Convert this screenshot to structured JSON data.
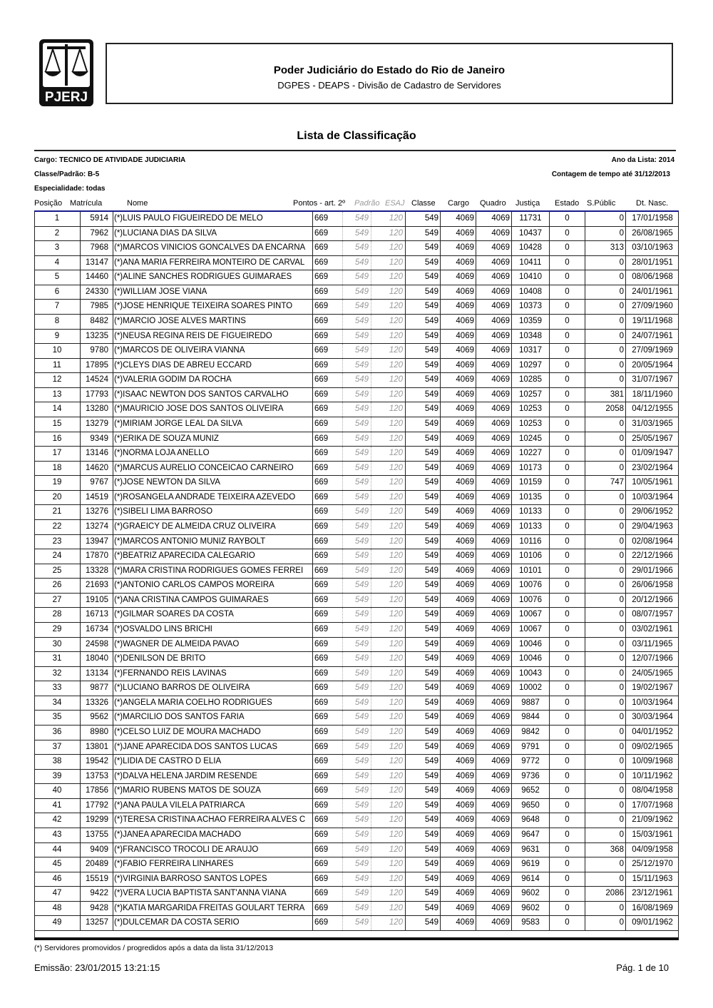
{
  "header": {
    "logo_text": "PJERJ",
    "org": "Poder Judiciário do Estado do Rio de Janeiro",
    "dept": "DGPES - DEAPS - Divisão de Cadastro de Servidores"
  },
  "title": "Lista de Classificação",
  "meta": {
    "cargo": "Cargo: TECNICO DE ATIVIDADE JUDICIARIA",
    "ano": "Ano da Lista: 2014",
    "classe": "Classe/Padrão: B-5",
    "contagem": "Contagem de tempo até 31/12/2013",
    "especialidade": "Especialidade: todas"
  },
  "columns": {
    "posicao": "Posição",
    "matricula": "Matrícula",
    "nome": "Nome",
    "pontos": "Pontos - art. 2º",
    "padrao": "Padrão",
    "esaj": "ESAJ",
    "classe": "Classe",
    "cargo": "Cargo",
    "quadro": "Quadro",
    "justica": "Justiça",
    "estado": "Estado",
    "spublic": "S.Públic",
    "dtnasc": "Dt. Nasc."
  },
  "rows": [
    [
      "1",
      "5914",
      "(*)LUIS PAULO FIGUEIREDO DE MELO",
      "669",
      "549",
      "120",
      "549",
      "4069",
      "4069",
      "11731",
      "0",
      "0",
      "17/01/1958"
    ],
    [
      "2",
      "7962",
      "(*)LUCIANA DIAS DA SILVA",
      "669",
      "549",
      "120",
      "549",
      "4069",
      "4069",
      "10437",
      "0",
      "0",
      "26/08/1965"
    ],
    [
      "3",
      "7968",
      "(*)MARCOS VINICIOS GONCALVES DA ENCARNA",
      "669",
      "549",
      "120",
      "549",
      "4069",
      "4069",
      "10428",
      "0",
      "313",
      "03/10/1963"
    ],
    [
      "4",
      "13147",
      "(*)ANA MARIA FERREIRA MONTEIRO DE CARVAL",
      "669",
      "549",
      "120",
      "549",
      "4069",
      "4069",
      "10411",
      "0",
      "0",
      "28/01/1951"
    ],
    [
      "5",
      "14460",
      "(*)ALINE SANCHES RODRIGUES GUIMARAES",
      "669",
      "549",
      "120",
      "549",
      "4069",
      "4069",
      "10410",
      "0",
      "0",
      "08/06/1968"
    ],
    [
      "6",
      "24330",
      "(*)WILLIAM JOSE VIANA",
      "669",
      "549",
      "120",
      "549",
      "4069",
      "4069",
      "10408",
      "0",
      "0",
      "24/01/1961"
    ],
    [
      "7",
      "7985",
      "(*)JOSE HENRIQUE TEIXEIRA SOARES PINTO",
      "669",
      "549",
      "120",
      "549",
      "4069",
      "4069",
      "10373",
      "0",
      "0",
      "27/09/1960"
    ],
    [
      "8",
      "8482",
      "(*)MARCIO JOSE ALVES MARTINS",
      "669",
      "549",
      "120",
      "549",
      "4069",
      "4069",
      "10359",
      "0",
      "0",
      "19/11/1968"
    ],
    [
      "9",
      "13235",
      "(*)NEUSA REGINA REIS DE FIGUEIREDO",
      "669",
      "549",
      "120",
      "549",
      "4069",
      "4069",
      "10348",
      "0",
      "0",
      "24/07/1961"
    ],
    [
      "10",
      "9780",
      "(*)MARCOS DE OLIVEIRA VIANNA",
      "669",
      "549",
      "120",
      "549",
      "4069",
      "4069",
      "10317",
      "0",
      "0",
      "27/09/1969"
    ],
    [
      "11",
      "17895",
      "(*)CLEYS DIAS DE ABREU ECCARD",
      "669",
      "549",
      "120",
      "549",
      "4069",
      "4069",
      "10297",
      "0",
      "0",
      "20/05/1964"
    ],
    [
      "12",
      "14524",
      "(*)VALERIA GODIM DA ROCHA",
      "669",
      "549",
      "120",
      "549",
      "4069",
      "4069",
      "10285",
      "0",
      "0",
      "31/07/1967"
    ],
    [
      "13",
      "17793",
      "(*)ISAAC NEWTON DOS SANTOS CARVALHO",
      "669",
      "549",
      "120",
      "549",
      "4069",
      "4069",
      "10257",
      "0",
      "381",
      "18/11/1960"
    ],
    [
      "14",
      "13280",
      "(*)MAURICIO JOSE DOS SANTOS OLIVEIRA",
      "669",
      "549",
      "120",
      "549",
      "4069",
      "4069",
      "10253",
      "0",
      "2058",
      "04/12/1955"
    ],
    [
      "15",
      "13279",
      "(*)MIRIAM JORGE LEAL DA SILVA",
      "669",
      "549",
      "120",
      "549",
      "4069",
      "4069",
      "10253",
      "0",
      "0",
      "31/03/1965"
    ],
    [
      "16",
      "9349",
      "(*)ERIKA DE SOUZA MUNIZ",
      "669",
      "549",
      "120",
      "549",
      "4069",
      "4069",
      "10245",
      "0",
      "0",
      "25/05/1967"
    ],
    [
      "17",
      "13146",
      "(*)NORMA LOJA ANELLO",
      "669",
      "549",
      "120",
      "549",
      "4069",
      "4069",
      "10227",
      "0",
      "0",
      "01/09/1947"
    ],
    [
      "18",
      "14620",
      "(*)MARCUS AURELIO CONCEICAO CARNEIRO",
      "669",
      "549",
      "120",
      "549",
      "4069",
      "4069",
      "10173",
      "0",
      "0",
      "23/02/1964"
    ],
    [
      "19",
      "9767",
      "(*)JOSE NEWTON DA SILVA",
      "669",
      "549",
      "120",
      "549",
      "4069",
      "4069",
      "10159",
      "0",
      "747",
      "10/05/1961"
    ],
    [
      "20",
      "14519",
      "(*)ROSANGELA ANDRADE TEIXEIRA AZEVEDO",
      "669",
      "549",
      "120",
      "549",
      "4069",
      "4069",
      "10135",
      "0",
      "0",
      "10/03/1964"
    ],
    [
      "21",
      "13276",
      "(*)SIBELI LIMA BARROSO",
      "669",
      "549",
      "120",
      "549",
      "4069",
      "4069",
      "10133",
      "0",
      "0",
      "29/06/1952"
    ],
    [
      "22",
      "13274",
      "(*)GRAEICY DE ALMEIDA CRUZ OLIVEIRA",
      "669",
      "549",
      "120",
      "549",
      "4069",
      "4069",
      "10133",
      "0",
      "0",
      "29/04/1963"
    ],
    [
      "23",
      "13947",
      "(*)MARCOS ANTONIO MUNIZ RAYBOLT",
      "669",
      "549",
      "120",
      "549",
      "4069",
      "4069",
      "10116",
      "0",
      "0",
      "02/08/1964"
    ],
    [
      "24",
      "17870",
      "(*)BEATRIZ APARECIDA CALEGARIO",
      "669",
      "549",
      "120",
      "549",
      "4069",
      "4069",
      "10106",
      "0",
      "0",
      "22/12/1966"
    ],
    [
      "25",
      "13328",
      "(*)MARA CRISTINA RODRIGUES GOMES FERREI",
      "669",
      "549",
      "120",
      "549",
      "4069",
      "4069",
      "10101",
      "0",
      "0",
      "29/01/1966"
    ],
    [
      "26",
      "21693",
      "(*)ANTONIO CARLOS CAMPOS MOREIRA",
      "669",
      "549",
      "120",
      "549",
      "4069",
      "4069",
      "10076",
      "0",
      "0",
      "26/06/1958"
    ],
    [
      "27",
      "19105",
      "(*)ANA CRISTINA CAMPOS GUIMARAES",
      "669",
      "549",
      "120",
      "549",
      "4069",
      "4069",
      "10076",
      "0",
      "0",
      "20/12/1966"
    ],
    [
      "28",
      "16713",
      "(*)GILMAR SOARES DA COSTA",
      "669",
      "549",
      "120",
      "549",
      "4069",
      "4069",
      "10067",
      "0",
      "0",
      "08/07/1957"
    ],
    [
      "29",
      "16734",
      "(*)OSVALDO LINS BRICHI",
      "669",
      "549",
      "120",
      "549",
      "4069",
      "4069",
      "10067",
      "0",
      "0",
      "03/02/1961"
    ],
    [
      "30",
      "24598",
      "(*)WAGNER DE ALMEIDA PAVAO",
      "669",
      "549",
      "120",
      "549",
      "4069",
      "4069",
      "10046",
      "0",
      "0",
      "03/11/1965"
    ],
    [
      "31",
      "18040",
      "(*)DENILSON DE BRITO",
      "669",
      "549",
      "120",
      "549",
      "4069",
      "4069",
      "10046",
      "0",
      "0",
      "12/07/1966"
    ],
    [
      "32",
      "13134",
      "(*)FERNANDO REIS LAVINAS",
      "669",
      "549",
      "120",
      "549",
      "4069",
      "4069",
      "10043",
      "0",
      "0",
      "24/05/1965"
    ],
    [
      "33",
      "9877",
      "(*)LUCIANO BARROS DE OLIVEIRA",
      "669",
      "549",
      "120",
      "549",
      "4069",
      "4069",
      "10002",
      "0",
      "0",
      "19/02/1967"
    ],
    [
      "34",
      "13326",
      "(*)ANGELA MARIA COELHO RODRIGUES",
      "669",
      "549",
      "120",
      "549",
      "4069",
      "4069",
      "9887",
      "0",
      "0",
      "10/03/1964"
    ],
    [
      "35",
      "9562",
      "(*)MARCILIO DOS SANTOS FARIA",
      "669",
      "549",
      "120",
      "549",
      "4069",
      "4069",
      "9844",
      "0",
      "0",
      "30/03/1964"
    ],
    [
      "36",
      "8980",
      "(*)CELSO LUIZ DE MOURA MACHADO",
      "669",
      "549",
      "120",
      "549",
      "4069",
      "4069",
      "9842",
      "0",
      "0",
      "04/01/1952"
    ],
    [
      "37",
      "13801",
      "(*)JANE APARECIDA DOS SANTOS LUCAS",
      "669",
      "549",
      "120",
      "549",
      "4069",
      "4069",
      "9791",
      "0",
      "0",
      "09/02/1965"
    ],
    [
      "38",
      "19542",
      "(*)LIDIA DE CASTRO D ELIA",
      "669",
      "549",
      "120",
      "549",
      "4069",
      "4069",
      "9772",
      "0",
      "0",
      "10/09/1968"
    ],
    [
      "39",
      "13753",
      "(*)DALVA HELENA JARDIM RESENDE",
      "669",
      "549",
      "120",
      "549",
      "4069",
      "4069",
      "9736",
      "0",
      "0",
      "10/11/1962"
    ],
    [
      "40",
      "17856",
      "(*)MARIO RUBENS MATOS DE SOUZA",
      "669",
      "549",
      "120",
      "549",
      "4069",
      "4069",
      "9652",
      "0",
      "0",
      "08/04/1958"
    ],
    [
      "41",
      "17792",
      "(*)ANA PAULA VILELA PATRIARCA",
      "669",
      "549",
      "120",
      "549",
      "4069",
      "4069",
      "9650",
      "0",
      "0",
      "17/07/1968"
    ],
    [
      "42",
      "19299",
      "(*)TERESA CRISTINA ACHAO FERREIRA ALVES C",
      "669",
      "549",
      "120",
      "549",
      "4069",
      "4069",
      "9648",
      "0",
      "0",
      "21/09/1962"
    ],
    [
      "43",
      "13755",
      "(*)JANEA APARECIDA MACHADO",
      "669",
      "549",
      "120",
      "549",
      "4069",
      "4069",
      "9647",
      "0",
      "0",
      "15/03/1961"
    ],
    [
      "44",
      "9409",
      "(*)FRANCISCO TROCOLI DE ARAUJO",
      "669",
      "549",
      "120",
      "549",
      "4069",
      "4069",
      "9631",
      "0",
      "368",
      "04/09/1958"
    ],
    [
      "45",
      "20489",
      "(*)FABIO FERREIRA LINHARES",
      "669",
      "549",
      "120",
      "549",
      "4069",
      "4069",
      "9619",
      "0",
      "0",
      "25/12/1970"
    ],
    [
      "46",
      "15519",
      "(*)VIRGINIA BARROSO SANTOS LOPES",
      "669",
      "549",
      "120",
      "549",
      "4069",
      "4069",
      "9614",
      "0",
      "0",
      "15/11/1963"
    ],
    [
      "47",
      "9422",
      "(*)VERA LUCIA BAPTISTA SANT'ANNA VIANA",
      "669",
      "549",
      "120",
      "549",
      "4069",
      "4069",
      "9602",
      "0",
      "2086",
      "23/12/1961"
    ],
    [
      "48",
      "9428",
      "(*)KATIA MARGARIDA FREITAS GOULART TERRA",
      "669",
      "549",
      "120",
      "549",
      "4069",
      "4069",
      "9602",
      "0",
      "0",
      "16/08/1969"
    ],
    [
      "49",
      "13257",
      "(*)DULCEMAR DA COSTA SERIO",
      "669",
      "549",
      "120",
      "549",
      "4069",
      "4069",
      "9583",
      "0",
      "0",
      "09/01/1962"
    ]
  ],
  "footer": {
    "note": "(*) Servidores promovidos / progredidos após a data da lista 31/12/2013",
    "emissao": "Emissão:  23/01/2015      13:21:15",
    "pagina": "Pág. 1 de 10"
  }
}
